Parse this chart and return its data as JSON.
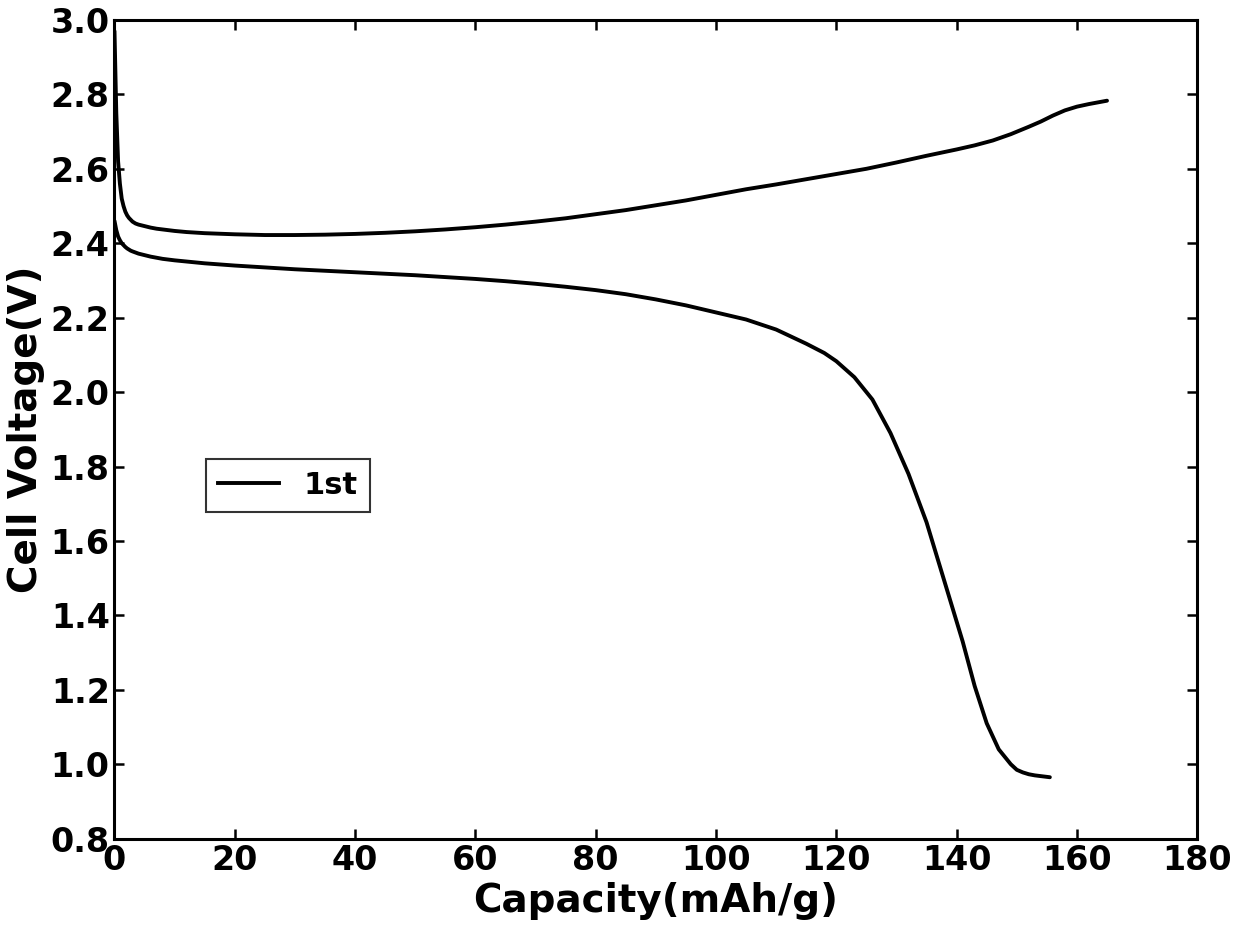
{
  "title": "",
  "xlabel": "Capacity(mAh/g)",
  "ylabel": "Cell Voltage(V)",
  "xlim": [
    0,
    180
  ],
  "ylim": [
    0.8,
    3.0
  ],
  "xticks": [
    0,
    20,
    40,
    60,
    80,
    100,
    120,
    140,
    160,
    180
  ],
  "yticks": [
    0.8,
    1.0,
    1.2,
    1.4,
    1.6,
    1.8,
    2.0,
    2.2,
    2.4,
    2.6,
    2.8,
    3.0
  ],
  "line_color": "#000000",
  "line_width": 2.8,
  "legend_label": "1st",
  "background_color": "#ffffff",
  "xlabel_fontsize": 28,
  "ylabel_fontsize": 28,
  "tick_fontsize": 24,
  "legend_fontsize": 22,
  "charge_x": [
    0.0,
    0.3,
    0.6,
    0.9,
    1.2,
    1.5,
    1.8,
    2.1,
    2.4,
    2.7,
    3.0,
    3.5,
    4.0,
    4.5,
    5.0,
    5.5,
    6.0,
    7.0,
    8.0,
    10.0,
    12.0,
    15.0,
    20.0,
    25.0,
    30.0,
    35.0,
    40.0,
    45.0,
    50.0,
    55.0,
    60.0,
    65.0,
    70.0,
    75.0,
    80.0,
    85.0,
    90.0,
    95.0,
    100.0,
    105.0,
    110.0,
    115.0,
    120.0,
    125.0,
    130.0,
    135.0,
    140.0,
    143.0,
    146.0,
    149.0,
    152.0,
    154.0,
    156.0,
    158.0,
    160.0,
    162.0,
    164.0,
    165.0
  ],
  "charge_y": [
    2.97,
    2.75,
    2.62,
    2.56,
    2.52,
    2.5,
    2.485,
    2.475,
    2.468,
    2.463,
    2.458,
    2.453,
    2.45,
    2.448,
    2.446,
    2.444,
    2.442,
    2.439,
    2.437,
    2.433,
    2.43,
    2.427,
    2.424,
    2.422,
    2.422,
    2.423,
    2.425,
    2.428,
    2.432,
    2.437,
    2.443,
    2.45,
    2.458,
    2.467,
    2.478,
    2.489,
    2.502,
    2.515,
    2.53,
    2.545,
    2.558,
    2.572,
    2.586,
    2.6,
    2.617,
    2.635,
    2.652,
    2.663,
    2.676,
    2.693,
    2.713,
    2.727,
    2.743,
    2.757,
    2.767,
    2.774,
    2.78,
    2.783
  ],
  "discharge_x": [
    0.0,
    0.3,
    0.6,
    0.9,
    1.2,
    1.5,
    1.8,
    2.1,
    2.4,
    2.7,
    3.0,
    3.5,
    4.0,
    4.5,
    5.0,
    6.0,
    7.0,
    8.0,
    10.0,
    15.0,
    20.0,
    25.0,
    30.0,
    35.0,
    40.0,
    45.0,
    50.0,
    55.0,
    60.0,
    65.0,
    70.0,
    75.0,
    80.0,
    85.0,
    90.0,
    95.0,
    100.0,
    105.0,
    110.0,
    115.0,
    118.0,
    120.0,
    123.0,
    126.0,
    129.0,
    132.0,
    135.0,
    138.0,
    141.0,
    143.0,
    145.0,
    147.0,
    149.0,
    150.0,
    151.0,
    152.0,
    153.0,
    154.0,
    155.0,
    155.5
  ],
  "discharge_y": [
    2.46,
    2.435,
    2.418,
    2.408,
    2.4,
    2.395,
    2.39,
    2.386,
    2.383,
    2.38,
    2.378,
    2.375,
    2.372,
    2.37,
    2.368,
    2.364,
    2.361,
    2.358,
    2.354,
    2.346,
    2.34,
    2.335,
    2.33,
    2.326,
    2.322,
    2.318,
    2.314,
    2.309,
    2.304,
    2.298,
    2.291,
    2.283,
    2.274,
    2.263,
    2.249,
    2.233,
    2.214,
    2.195,
    2.168,
    2.13,
    2.105,
    2.083,
    2.04,
    1.98,
    1.89,
    1.78,
    1.65,
    1.49,
    1.33,
    1.21,
    1.11,
    1.04,
    1.0,
    0.985,
    0.978,
    0.973,
    0.97,
    0.968,
    0.966,
    0.965
  ]
}
